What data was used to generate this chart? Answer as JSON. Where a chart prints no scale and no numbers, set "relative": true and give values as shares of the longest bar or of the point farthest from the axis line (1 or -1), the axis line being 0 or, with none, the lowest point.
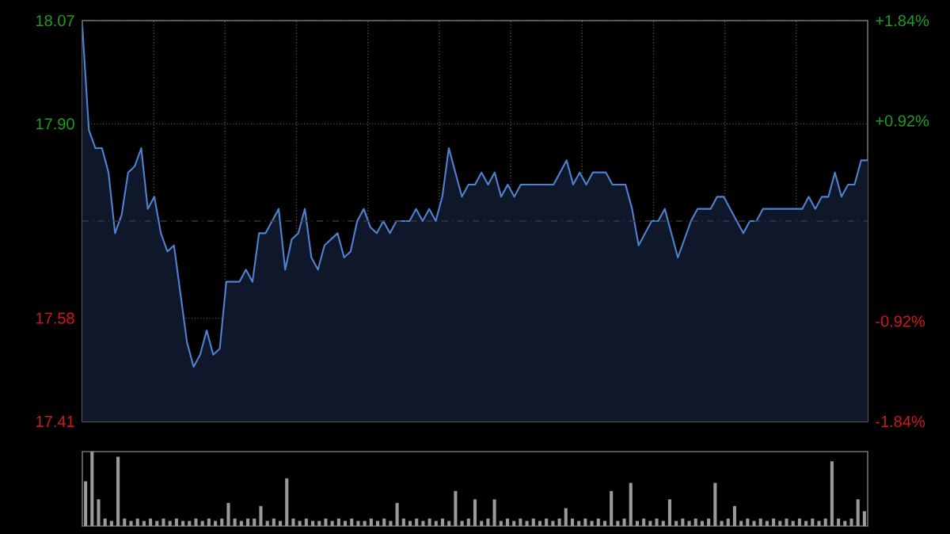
{
  "chart_data": [
    {
      "type": "area",
      "color": "#4f81d0",
      "categories": [
        null,
        null,
        null,
        null,
        null,
        null,
        null,
        null,
        null,
        null,
        null,
        null,
        null,
        null,
        null,
        null,
        null,
        null,
        null,
        null,
        null,
        null,
        null,
        null,
        null,
        null,
        null,
        null,
        null,
        null,
        null,
        null,
        null,
        null,
        null,
        null,
        null,
        null,
        null,
        null,
        null,
        null,
        null,
        null,
        null,
        null,
        null,
        null,
        null,
        null,
        null,
        null,
        null,
        null,
        null,
        null,
        null,
        null,
        null,
        null,
        null,
        null,
        null,
        null,
        null,
        null,
        null,
        null,
        null,
        null,
        null,
        null,
        null,
        null,
        null,
        null,
        null,
        null,
        null,
        null,
        null,
        null,
        null,
        null,
        null,
        null,
        null,
        null,
        null,
        null,
        null,
        null,
        null,
        null,
        null,
        null,
        null,
        null,
        null,
        null,
        null,
        null,
        null,
        null,
        null,
        null,
        null,
        null,
        null,
        null,
        null,
        null,
        null,
        null,
        null,
        null,
        null,
        null,
        null,
        null,
        null
      ],
      "values": [
        18.06,
        17.89,
        17.86,
        17.86,
        17.82,
        17.72,
        17.75,
        17.82,
        17.83,
        17.86,
        17.76,
        17.78,
        17.72,
        17.69,
        17.7,
        17.62,
        17.54,
        17.5,
        17.52,
        17.56,
        17.52,
        17.53,
        17.64,
        17.64,
        17.64,
        17.66,
        17.64,
        17.72,
        17.72,
        17.74,
        17.76,
        17.66,
        17.71,
        17.72,
        17.76,
        17.68,
        17.66,
        17.7,
        17.71,
        17.72,
        17.68,
        17.69,
        17.74,
        17.76,
        17.73,
        17.72,
        17.74,
        17.72,
        17.74,
        17.74,
        17.74,
        17.76,
        17.74,
        17.76,
        17.74,
        17.78,
        17.86,
        17.82,
        17.78,
        17.8,
        17.8,
        17.82,
        17.8,
        17.82,
        17.78,
        17.8,
        17.78,
        17.8,
        17.8,
        17.8,
        17.8,
        17.8,
        17.8,
        17.82,
        17.84,
        17.8,
        17.82,
        17.8,
        17.82,
        17.82,
        17.82,
        17.8,
        17.8,
        17.8,
        17.76,
        17.7,
        17.72,
        17.74,
        17.74,
        17.76,
        17.72,
        17.68,
        17.71,
        17.74,
        17.76,
        17.76,
        17.76,
        17.78,
        17.78,
        17.76,
        17.74,
        17.72,
        17.74,
        17.74,
        17.76,
        17.76,
        17.76,
        17.76,
        17.76,
        17.76,
        17.76,
        17.78,
        17.76,
        17.78,
        17.78,
        17.82,
        17.78,
        17.8,
        17.8,
        17.84,
        17.84
      ],
      "ylim": [
        17.41,
        18.07
      ],
      "yticks": [
        {
          "value": 17.41,
          "label": "17.41"
        },
        {
          "value": 17.58,
          "label": "17.58"
        },
        {
          "value": 17.9,
          "label": "17.90"
        },
        {
          "value": 18.07,
          "label": "18.07"
        }
      ],
      "y2lim": [
        -1.84,
        1.84
      ],
      "y2ticks": [
        {
          "value": -1.84,
          "label": "-1.84%"
        },
        {
          "value": -0.92,
          "label": "-0.92%"
        },
        {
          "value": 0.92,
          "label": "+0.92%"
        },
        {
          "value": 1.84,
          "label": "+1.84%"
        }
      ],
      "ref_lines": [
        {
          "axis": "y",
          "value": 17.74,
          "line_style": "dashed"
        }
      ],
      "grid": true
    },
    {
      "type": "bar",
      "relative": true,
      "color": "#9a9a9a",
      "categories": [
        null,
        null,
        null,
        null,
        null,
        null,
        null,
        null,
        null,
        null,
        null,
        null,
        null,
        null,
        null,
        null,
        null,
        null,
        null,
        null,
        null,
        null,
        null,
        null,
        null,
        null,
        null,
        null,
        null,
        null,
        null,
        null,
        null,
        null,
        null,
        null,
        null,
        null,
        null,
        null,
        null,
        null,
        null,
        null,
        null,
        null,
        null,
        null,
        null,
        null,
        null,
        null,
        null,
        null,
        null,
        null,
        null,
        null,
        null,
        null,
        null,
        null,
        null,
        null,
        null,
        null,
        null,
        null,
        null,
        null,
        null,
        null,
        null,
        null,
        null,
        null,
        null,
        null,
        null,
        null,
        null,
        null,
        null,
        null,
        null,
        null,
        null,
        null,
        null,
        null,
        null,
        null,
        null,
        null,
        null,
        null,
        null,
        null,
        null,
        null,
        null,
        null,
        null,
        null,
        null,
        null,
        null,
        null,
        null,
        null,
        null,
        null,
        null,
        null,
        null,
        null,
        null,
        null,
        null,
        null,
        null
      ],
      "values": [
        0.6,
        1,
        0.36,
        0.1,
        0.07,
        0.93,
        0.1,
        0.07,
        0.1,
        0.07,
        0.1,
        0.07,
        0.1,
        0.07,
        0.1,
        0.07,
        0.07,
        0.1,
        0.07,
        0.1,
        0.07,
        0.1,
        0.31,
        0.1,
        0.07,
        0.1,
        0.1,
        0.27,
        0.07,
        0.1,
        0.07,
        0.64,
        0.1,
        0.07,
        0.1,
        0.07,
        0.07,
        0.1,
        0.07,
        0.1,
        0.07,
        0.1,
        0.07,
        0.07,
        0.1,
        0.07,
        0.1,
        0.07,
        0.31,
        0.1,
        0.07,
        0.1,
        0.07,
        0.1,
        0.07,
        0.1,
        0.07,
        0.47,
        0.07,
        0.1,
        0.36,
        0.07,
        0.1,
        0.36,
        0.07,
        0.1,
        0.07,
        0.1,
        0.07,
        0.1,
        0.07,
        0.1,
        0.07,
        0.1,
        0.24,
        0.1,
        0.07,
        0.1,
        0.07,
        0.1,
        0.07,
        0.47,
        0.07,
        0.1,
        0.58,
        0.07,
        0.1,
        0.07,
        0.1,
        0.07,
        0.36,
        0.07,
        0.1,
        0.07,
        0.1,
        0.07,
        0.1,
        0.58,
        0.07,
        0.1,
        0.27,
        0.07,
        0.1,
        0.07,
        0.1,
        0.07,
        0.1,
        0.07,
        0.1,
        0.07,
        0.1,
        0.07,
        0.1,
        0.07,
        0.1,
        0.87,
        0.1,
        0.07,
        0.1,
        0.36,
        0.2
      ]
    }
  ]
}
